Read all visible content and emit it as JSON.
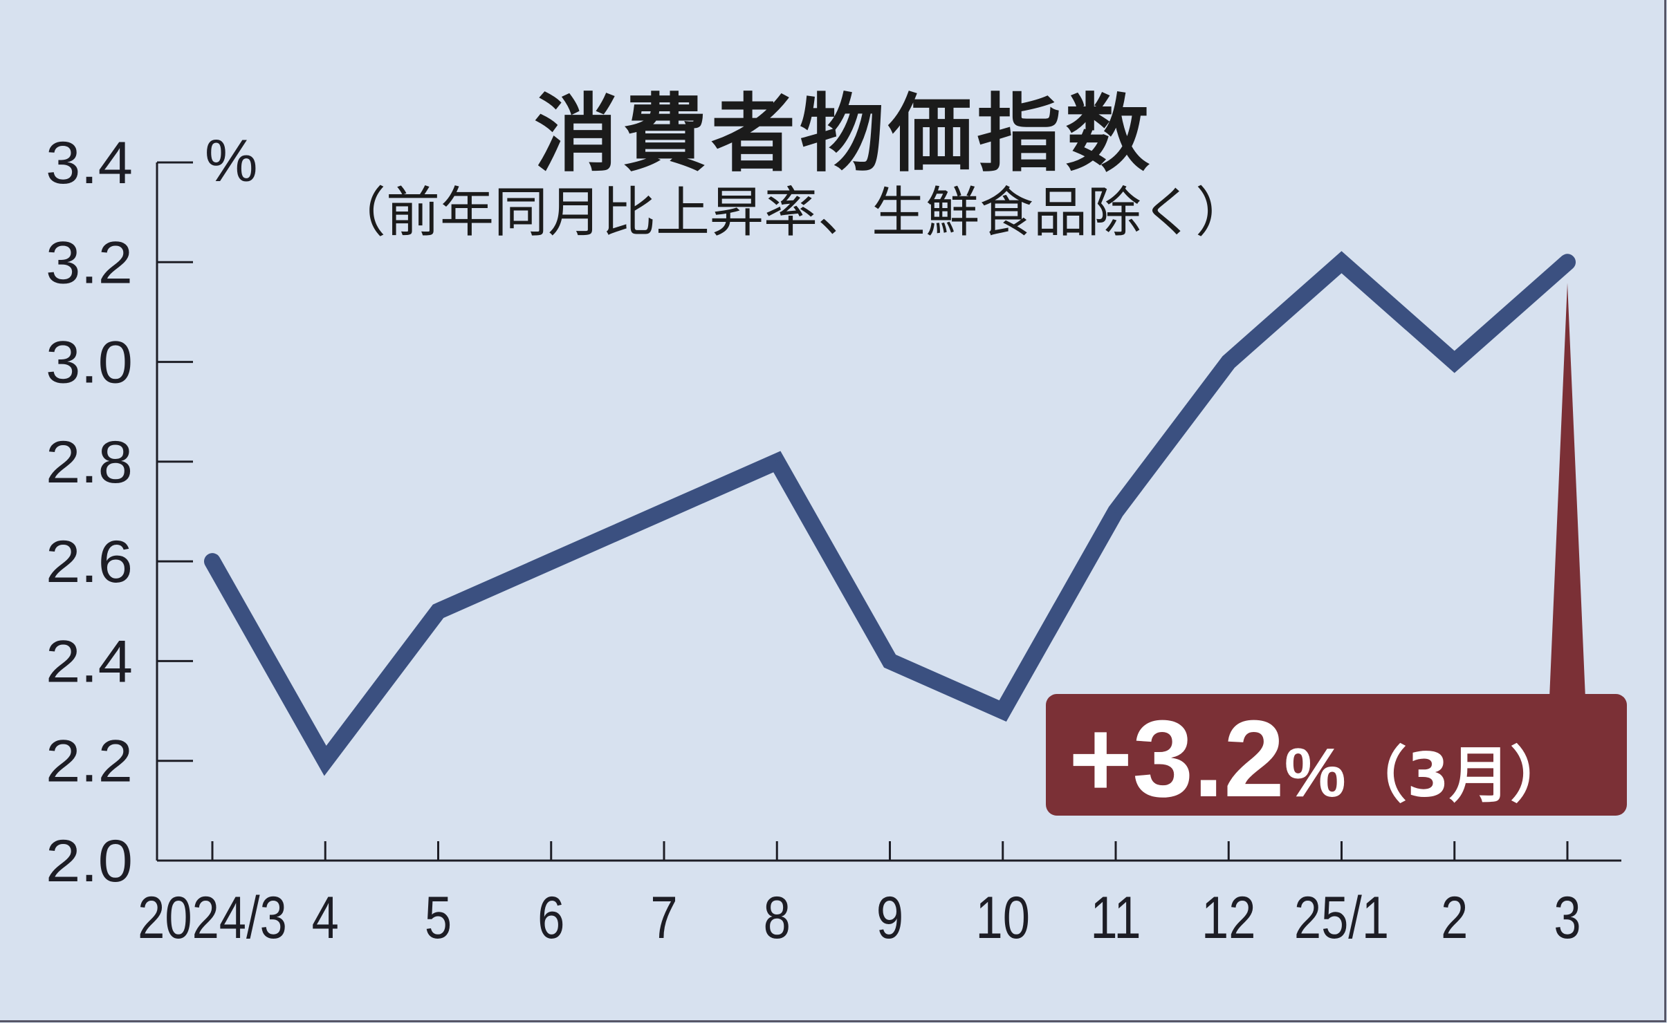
{
  "chart_data": {
    "type": "line",
    "title": "消費者物価指数",
    "subtitle": "（前年同月比上昇率、生鮮食品除く）",
    "ylabel": "%",
    "categories": [
      "2024/3",
      "4",
      "5",
      "6",
      "7",
      "8",
      "9",
      "10",
      "11",
      "12",
      "25/1",
      "2",
      "3"
    ],
    "values": [
      2.6,
      2.2,
      2.5,
      2.6,
      2.7,
      2.8,
      2.4,
      2.3,
      2.7,
      3.0,
      3.2,
      3.0,
      3.2
    ],
    "ylim": [
      2.0,
      3.4
    ],
    "yticks": [
      "2.0",
      "2.2",
      "2.4",
      "2.6",
      "2.8",
      "3.0",
      "3.2",
      "3.4"
    ],
    "grid": false,
    "line_color": "#3b5080",
    "annotation": {
      "value": "+3.2",
      "unit": "%",
      "period": "（3月）",
      "color": "#7b3036"
    }
  }
}
